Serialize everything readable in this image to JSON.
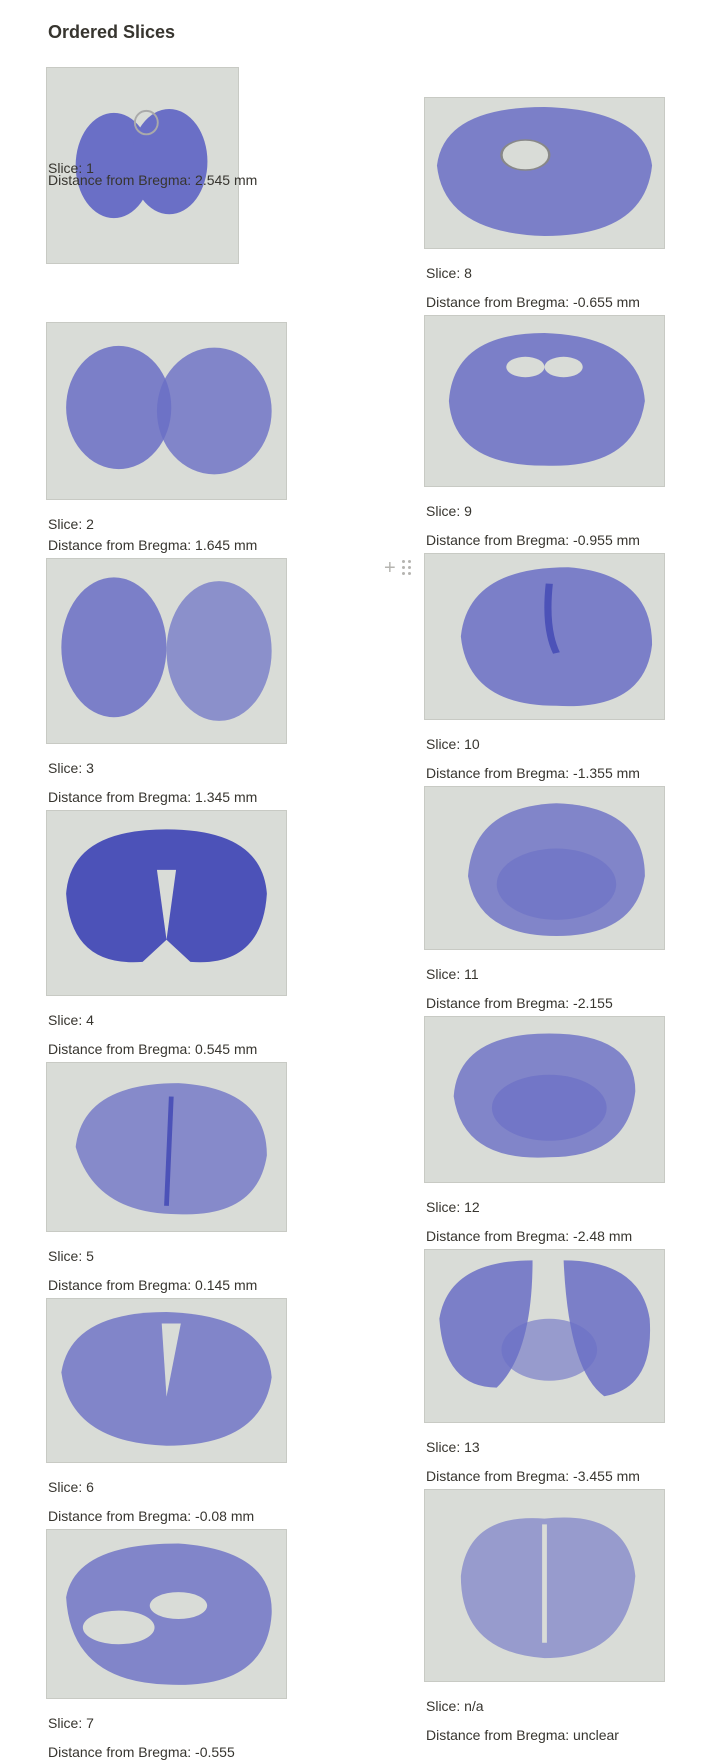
{
  "page": {
    "title": "Ordered Slices"
  },
  "slice_label_prefix": "Slice: ",
  "distance_label_prefix": "Distance from Bregma: ",
  "colors": {
    "stain": "#6a6fc6",
    "stain_dark": "#4c52b8",
    "background": "#d9dcd7"
  },
  "icons": {
    "add": "plus-icon",
    "drag": "drag-handle-icon"
  },
  "slices": [
    {
      "slice": "Slice: 1",
      "distance": "Distance from Bregma: 2.545 mm"
    },
    {
      "slice": "Slice: 2",
      "distance": "Distance from Bregma: 1.645 mm"
    },
    {
      "slice": "Slice: 3",
      "distance": "Distance from Bregma: 1.345 mm"
    },
    {
      "slice": "Slice: 4",
      "distance": "Distance from Bregma: 0.545 mm"
    },
    {
      "slice": "Slice: 5",
      "distance": "Distance from Bregma: 0.145 mm"
    },
    {
      "slice": "Slice: 6",
      "distance": "Distance from Bregma: -0.08 mm"
    },
    {
      "slice": "Slice: 7",
      "distance": "Distance from Bregma: -0.555"
    },
    {
      "slice": "Slice: 8",
      "distance": "Distance from Bregma: -0.655 mm"
    },
    {
      "slice": "Slice: 9",
      "distance": "Distance from Bregma: -0.955 mm"
    },
    {
      "slice": "Slice: 10",
      "distance": "Distance from Bregma: -1.355 mm"
    },
    {
      "slice": "Slice: 11",
      "distance": "Distance from Bregma: -2.155"
    },
    {
      "slice": "Slice: 12",
      "distance": "Distance from Bregma: -2.48 mm"
    },
    {
      "slice": "Slice: 13",
      "distance": "Distance from Bregma: -3.455 mm"
    },
    {
      "slice": "Slice: n/a",
      "distance": "Distance from Bregma: unclear"
    }
  ]
}
